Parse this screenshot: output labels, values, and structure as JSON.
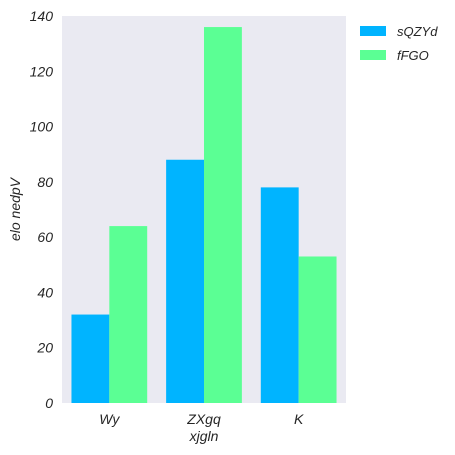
{
  "chart_data": {
    "type": "bar",
    "categories": [
      "Wy",
      "ZXgq",
      "K"
    ],
    "series": [
      {
        "name": "sQZYd",
        "color": "#00b4ff",
        "values": [
          32,
          88,
          78
        ]
      },
      {
        "name": "fFGO",
        "color": "#5bff94",
        "values": [
          64,
          136,
          53
        ]
      }
    ],
    "xlabel": "xjgln",
    "ylabel": "elo nedpV",
    "ylim": [
      0,
      140
    ],
    "yticks": [
      0,
      20,
      40,
      60,
      80,
      100,
      120,
      140
    ],
    "grid": false,
    "legend": "outside-top-right",
    "background": "#eaeaf2"
  }
}
